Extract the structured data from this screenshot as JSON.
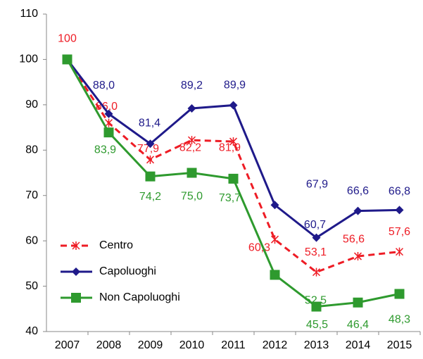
{
  "chart_data": {
    "type": "line",
    "categories": [
      "2007",
      "2008",
      "2009",
      "2010",
      "2011",
      "2012",
      "2013",
      "2014",
      "2015"
    ],
    "series": [
      {
        "name": "Centro",
        "color": "#ee1c25",
        "marker": "asterisk",
        "dash": true,
        "values": [
          100,
          86.0,
          77.9,
          82.2,
          81.9,
          60.3,
          53.1,
          56.6,
          57.6
        ],
        "value_labels": [
          "100",
          "86,0",
          "77,9",
          "82,2",
          "81,9",
          "60,3",
          "53,1",
          "56,6",
          "57,6"
        ]
      },
      {
        "name": "Capoluoghi",
        "color": "#1f1a8a",
        "marker": "diamond",
        "dash": false,
        "values": [
          100,
          88.0,
          81.4,
          89.2,
          89.9,
          67.9,
          60.7,
          66.6,
          66.8
        ],
        "value_labels": [
          null,
          "88,0",
          "81,4",
          "89,2",
          "89,9",
          "67,9",
          "60,7",
          "66,6",
          "66,8"
        ]
      },
      {
        "name": "Non Capoluoghi",
        "color": "#2e9a2e",
        "marker": "square",
        "dash": false,
        "values": [
          100,
          83.9,
          74.2,
          75.0,
          73.7,
          52.5,
          45.5,
          46.4,
          48.3
        ],
        "value_labels": [
          null,
          "83,9",
          "74,2",
          "75,0",
          "73,7",
          "52,5",
          "45,5",
          "46,4",
          "48,3"
        ]
      }
    ],
    "ylim": [
      40,
      110
    ],
    "yticks": [
      40,
      50,
      60,
      70,
      80,
      90,
      100,
      110
    ],
    "grid": false,
    "legend": "lower left"
  }
}
